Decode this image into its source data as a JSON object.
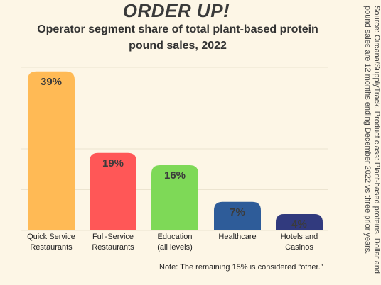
{
  "header": {
    "title": "ORDER UP!",
    "subtitle": "Operator segment share of total plant-based protein pound sales, 2022"
  },
  "source": "Source: Circana/SupplyTrack. Product class: Plant-based proteins. Dollar and pound sales are 12 months ending December 2022 vs three prior years.",
  "note": "Note: The remaining 15% is considered “other.”",
  "colors": {
    "background": "#fdf6e6",
    "gridline": "#ece4d0"
  },
  "chart_data": {
    "type": "bar",
    "title": "Operator segment share of total plant-based protein pound sales, 2022",
    "xlabel": "",
    "ylabel": "",
    "ylim": [
      0,
      40
    ],
    "grid": true,
    "legend": "none",
    "categories": [
      [
        "Quick Service",
        "Restaurants"
      ],
      [
        "Full-Service",
        "Restaurants"
      ],
      [
        "Education",
        "(all levels)"
      ],
      [
        "Healthcare"
      ],
      [
        "Hotels and",
        "Casinos"
      ]
    ],
    "values": [
      39,
      19,
      16,
      7,
      4
    ],
    "value_labels": [
      "39%",
      "19%",
      "16%",
      "7%",
      "4%"
    ],
    "bar_colors": [
      "#ffba55",
      "#ff5757",
      "#7ed957",
      "#2e5c99",
      "#313a7e"
    ]
  }
}
